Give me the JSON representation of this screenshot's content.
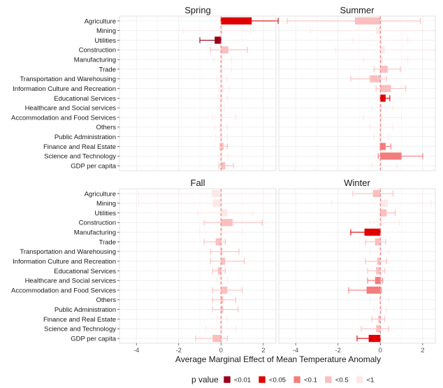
{
  "chart_data": {
    "type": "bar",
    "orientation": "horizontal",
    "xlabel": "Average Marginal Effect of Mean Temperature Anomaly",
    "xlim": [
      -4.8,
      2.6
    ],
    "xticks": [
      -4,
      -2,
      0,
      2
    ],
    "xtick_labels": [
      "-4",
      "-2",
      "0",
      "2"
    ],
    "reference_line": 0,
    "categories": [
      "Agriculture",
      "Mining",
      "Utilities",
      "Construction",
      "Manufacturing",
      "Trade",
      "Transportation and Warehousing",
      "Information Culture and Recreation",
      "Educational Services",
      "Healthcare and Social services",
      "Accommodation and Food Services",
      "Others",
      "Public Administration",
      "Finance and Real Estate",
      "Science and Technology",
      "GDP per capita"
    ],
    "legend": {
      "title": "p value",
      "position": "bottom",
      "items": [
        {
          "label": "<0.01",
          "color": "#99001a"
        },
        {
          "label": "<0.05",
          "color": "#e00000"
        },
        {
          "label": "<0.1",
          "color": "#f47c7c"
        },
        {
          "label": "<0.5",
          "color": "#fbbfbf"
        },
        {
          "label": "<1",
          "color": "#fde8e8"
        }
      ]
    },
    "panels": [
      {
        "title": "Spring",
        "values": [
          1.45,
          0.0,
          -0.3,
          0.35,
          0.08,
          0.05,
          0.07,
          0.12,
          0.08,
          -0.05,
          0.02,
          -0.07,
          0.05,
          0.12,
          0.05,
          0.2
        ],
        "ci_low": [
          0.0,
          -1.8,
          -1.0,
          -0.5,
          -0.35,
          -0.05,
          -0.2,
          -0.1,
          -0.15,
          -0.15,
          -0.4,
          -0.3,
          -0.25,
          -0.05,
          -0.1,
          -0.1
        ],
        "ci_high": [
          2.7,
          1.4,
          0.0,
          1.25,
          0.5,
          0.5,
          0.3,
          0.4,
          0.3,
          0.15,
          0.7,
          0.3,
          0.3,
          0.3,
          0.35,
          0.6
        ],
        "p_class": [
          "<0.05",
          "<1",
          "<0.01",
          "<0.5",
          "<1",
          "<1",
          "<1",
          "<1",
          "<1",
          "<1",
          "<1",
          "<1",
          "<1",
          "<0.5",
          "<1",
          "<0.5"
        ]
      },
      {
        "title": "Summer",
        "values": [
          -1.2,
          -0.2,
          0.0,
          0.2,
          0.12,
          0.35,
          -0.5,
          0.5,
          0.25,
          0.0,
          0.1,
          0.05,
          0.0,
          0.25,
          1.0,
          0.0
        ],
        "ci_low": [
          -4.4,
          -3.3,
          -1.3,
          -2.1,
          -0.8,
          -0.3,
          -1.4,
          -0.2,
          0.0,
          -0.4,
          -0.8,
          -0.5,
          -0.3,
          0.0,
          -0.1,
          -0.4
        ],
        "ci_high": [
          1.9,
          2.6,
          1.3,
          2.6,
          1.3,
          0.95,
          0.3,
          1.2,
          0.45,
          0.6,
          1.0,
          0.6,
          0.4,
          0.5,
          2.0,
          0.8
        ],
        "p_class": [
          "<0.5",
          "<1",
          "<1",
          "<1",
          "<1",
          "<0.5",
          "<0.5",
          "<0.5",
          "<0.05",
          "<1",
          "<1",
          "<1",
          "<1",
          "<0.1",
          "<0.1",
          "<1"
        ]
      },
      {
        "title": "Fall",
        "values": [
          -0.45,
          -0.4,
          0.3,
          0.55,
          0.0,
          -0.25,
          0.05,
          0.2,
          -0.15,
          0.0,
          0.3,
          0.1,
          0.1,
          0.0,
          0.0,
          -0.4
        ],
        "ci_low": [
          -3.9,
          -3.9,
          -1.1,
          -0.8,
          -1.0,
          -0.8,
          -0.5,
          -0.5,
          -0.4,
          -0.2,
          -0.4,
          -0.4,
          -0.4,
          -0.2,
          -0.7,
          -1.2
        ],
        "ci_high": [
          3.0,
          3.0,
          1.5,
          1.95,
          1.0,
          0.2,
          0.85,
          1.1,
          0.2,
          0.3,
          1.0,
          0.7,
          0.8,
          0.3,
          0.7,
          0.3
        ],
        "p_class": [
          "<1",
          "<1",
          "<1",
          "<0.5",
          "<1",
          "<0.5",
          "<0.5",
          "<0.5",
          "<0.5",
          "<1",
          "<0.5",
          "<0.5",
          "<0.5",
          "<1",
          "<1",
          "<0.5"
        ]
      },
      {
        "title": "Winter",
        "values": [
          -0.35,
          0.35,
          0.3,
          0.0,
          -0.75,
          -0.25,
          0.0,
          -0.15,
          -0.2,
          -0.25,
          -0.65,
          -0.05,
          0.0,
          -0.1,
          -0.2,
          -0.55
        ],
        "ci_low": [
          -1.3,
          -2.3,
          0.0,
          -0.5,
          -1.4,
          -0.7,
          -0.5,
          -0.7,
          -0.6,
          -0.6,
          -1.5,
          -0.5,
          -0.3,
          -0.4,
          -0.9,
          -1.1
        ],
        "ci_high": [
          0.6,
          2.4,
          0.7,
          0.9,
          0.0,
          0.25,
          0.4,
          0.3,
          0.2,
          0.1,
          0.05,
          0.4,
          0.3,
          0.2,
          0.4,
          0.0
        ],
        "p_class": [
          "<0.5",
          "<1",
          "<0.5",
          "<1",
          "<0.05",
          "<0.5",
          "<1",
          "<0.5",
          "<0.5",
          "<0.1",
          "<0.1",
          "<1",
          "<1",
          "<0.5",
          "<0.5",
          "<0.05"
        ]
      }
    ]
  }
}
